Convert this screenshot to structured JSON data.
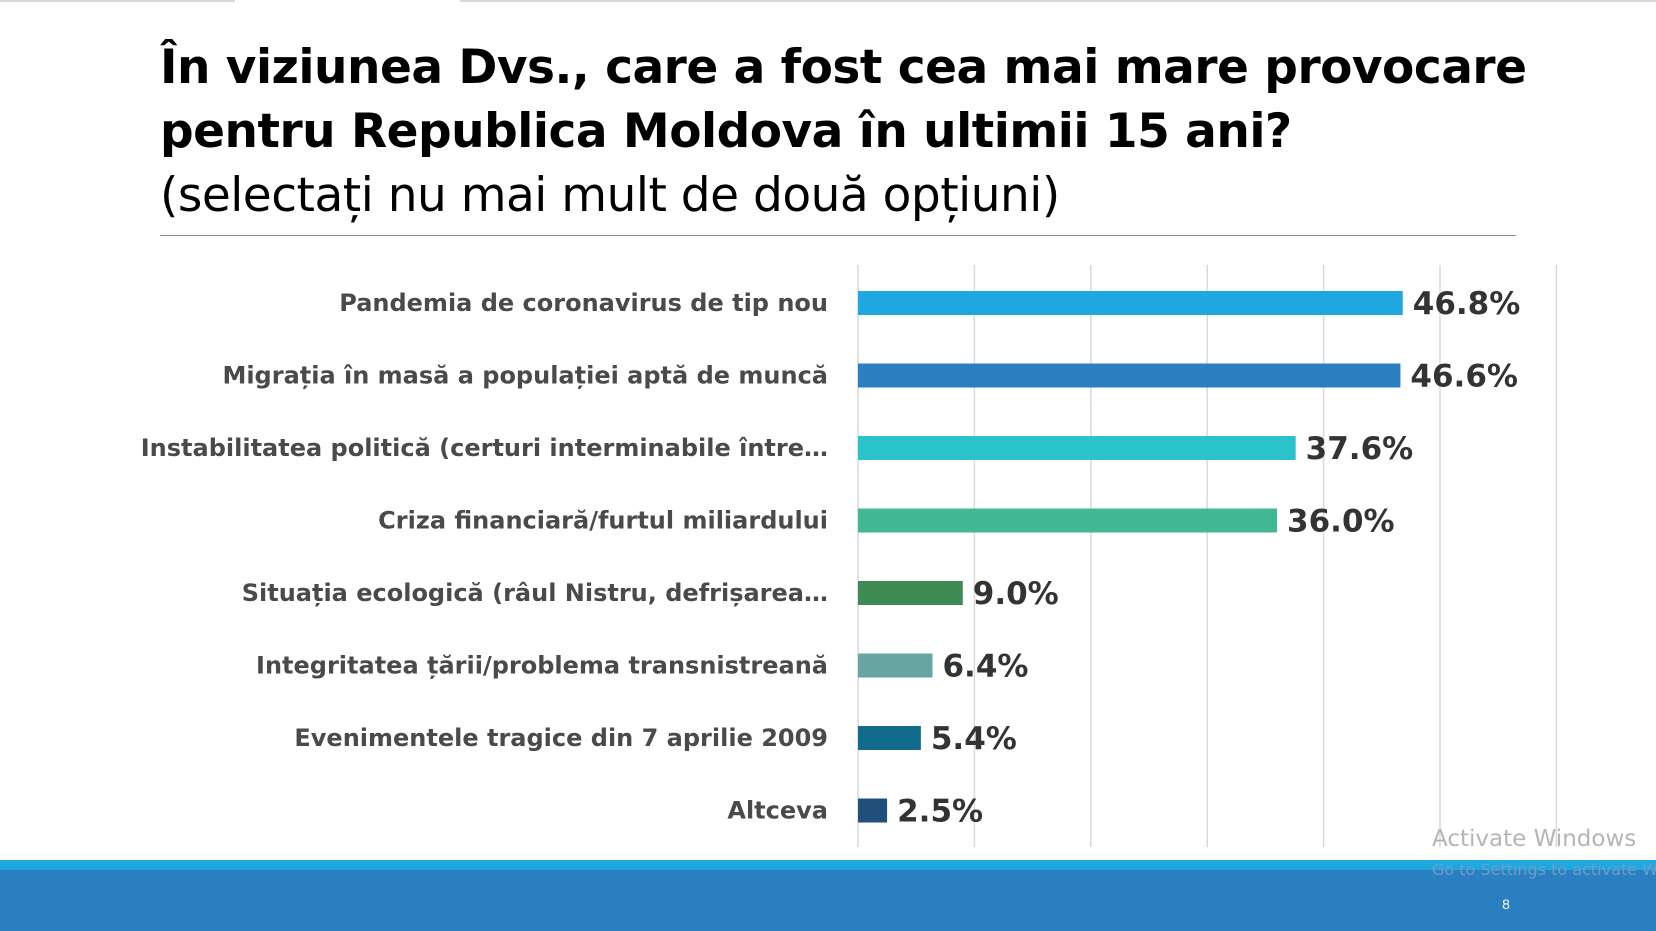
{
  "slide": {
    "title_line1": "În viziunea Dvs., care a fost cea mai mare provocare",
    "title_line2": "pentru Republica Moldova în ultimii 15 ani?",
    "subtitle": "(selectați nu mai mult de două opțiuni)",
    "page_number": "8"
  },
  "watermark": {
    "title": "Activate Windows",
    "subtitle": "Go to Settings to activate W"
  },
  "colors": {
    "footer_band": "#2a7fc1",
    "footer_stripe": "#1fa7df"
  },
  "chart_data": {
    "type": "bar",
    "orientation": "horizontal",
    "categories": [
      "Pandemia de coronavirus de tip nou",
      "Migrația în masă a populației aptă de muncă",
      "Instabilitatea politică (certuri interminabile între…",
      "Criza financiară/furtul miliardului",
      "Situația ecologică (râul Nistru, defrișarea…",
      "Integritatea țării/problema transnistreană",
      "Evenimentele tragice din 7 aprilie 2009",
      "Altceva"
    ],
    "values": [
      46.8,
      46.6,
      37.6,
      36.0,
      9.0,
      6.4,
      5.4,
      2.5
    ],
    "value_labels": [
      "46.8%",
      "46.6%",
      "37.6%",
      "36.0%",
      "9.0%",
      "6.4%",
      "5.4%",
      "2.5%"
    ],
    "bar_colors": [
      "#1fa7e1",
      "#2a7fc3",
      "#2bc2cc",
      "#43b895",
      "#3d8a55",
      "#66a5a0",
      "#106b8d",
      "#1f4f7a"
    ],
    "xlim": [
      0,
      60
    ],
    "grid": true,
    "unit": "%"
  }
}
